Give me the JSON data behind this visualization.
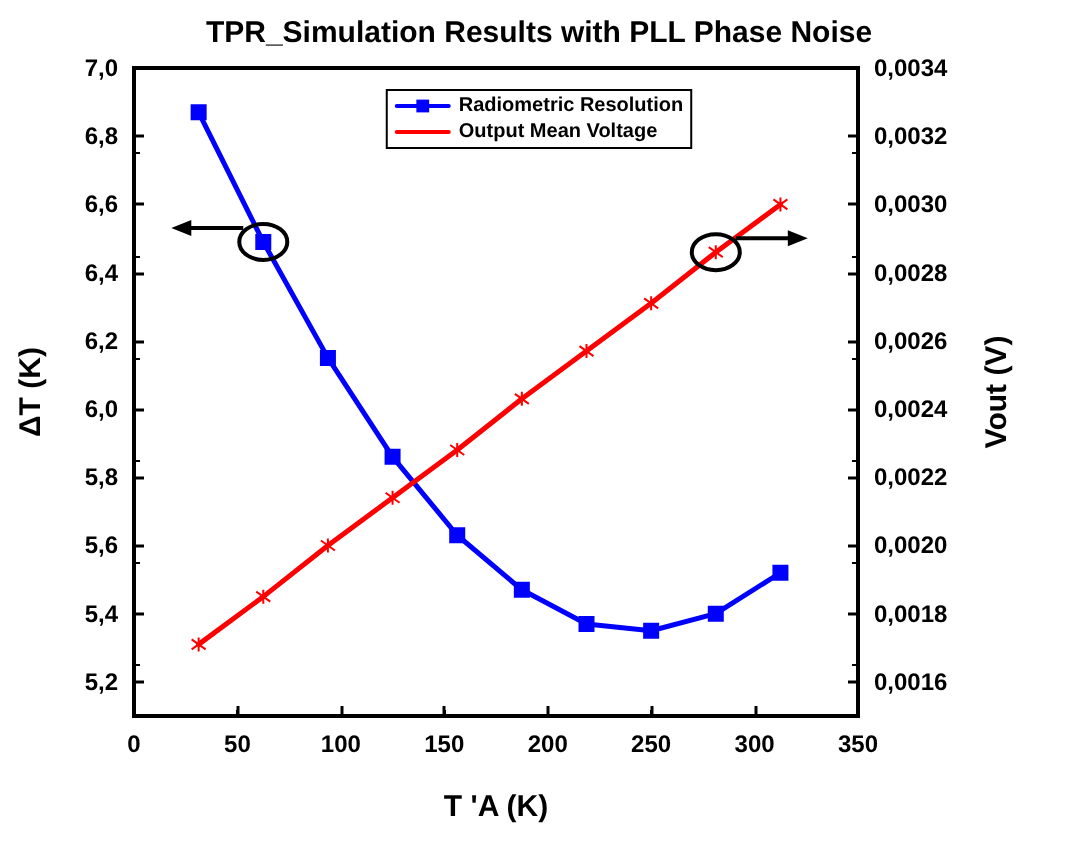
{
  "chart_data": {
    "type": "line",
    "title": "TPR_Simulation Results with PLL Phase Noise",
    "xlabel": "T 'A (K)",
    "ylabel": "ΔT (K)",
    "y2label": "Vout (V)",
    "x": [
      31.25,
      62.5,
      93.75,
      125,
      156.25,
      187.5,
      218.75,
      250,
      281.25,
      312.5
    ],
    "series": [
      {
        "name": "Radiometric Resolution",
        "color": "#0000ff",
        "marker": "square",
        "values": [
          6.87,
          6.49,
          6.15,
          5.86,
          5.63,
          5.47,
          5.37,
          5.35,
          5.4,
          5.52
        ]
      },
      {
        "name": "Output Mean Voltage",
        "color": "#ff0000",
        "marker": "cross",
        "axis": "y2",
        "values": [
          0.00171,
          0.00185,
          0.002,
          0.00214,
          0.00228,
          0.00243,
          0.00257,
          0.00271,
          0.00286,
          0.003
        ]
      }
    ],
    "xlim": [
      0,
      350
    ],
    "xticks": [
      0,
      50,
      100,
      150,
      200,
      250,
      300,
      350
    ],
    "ylim": [
      5.1,
      7.0
    ],
    "yticks": [
      {
        "value": 5.2,
        "label": "5,2"
      },
      {
        "value": 5.4,
        "label": "5,4"
      },
      {
        "value": 5.6,
        "label": "5,6"
      },
      {
        "value": 5.8,
        "label": "5,8"
      },
      {
        "value": 6.0,
        "label": "6,0"
      },
      {
        "value": 6.2,
        "label": "6,2"
      },
      {
        "value": 6.4,
        "label": "6,4"
      },
      {
        "value": 6.6,
        "label": "6,6"
      },
      {
        "value": 6.8,
        "label": "6,8"
      },
      {
        "value": 7.0,
        "label": "7,0"
      }
    ],
    "y2lim": [
      0.0015,
      0.0034
    ],
    "y2ticks": [
      {
        "value": 0.0016,
        "label": "0,0016"
      },
      {
        "value": 0.0018,
        "label": "0,0018"
      },
      {
        "value": 0.002,
        "label": "0,0020"
      },
      {
        "value": 0.0022,
        "label": "0,0022"
      },
      {
        "value": 0.0024,
        "label": "0,0024"
      },
      {
        "value": 0.0026,
        "label": "0,0026"
      },
      {
        "value": 0.0028,
        "label": "0,0028"
      },
      {
        "value": 0.003,
        "label": "0,0030"
      },
      {
        "value": 0.0032,
        "label": "0,0032"
      },
      {
        "value": 0.0034,
        "label": "0,0034"
      }
    ],
    "grid": false,
    "legend": "top",
    "line_style": "solid"
  }
}
